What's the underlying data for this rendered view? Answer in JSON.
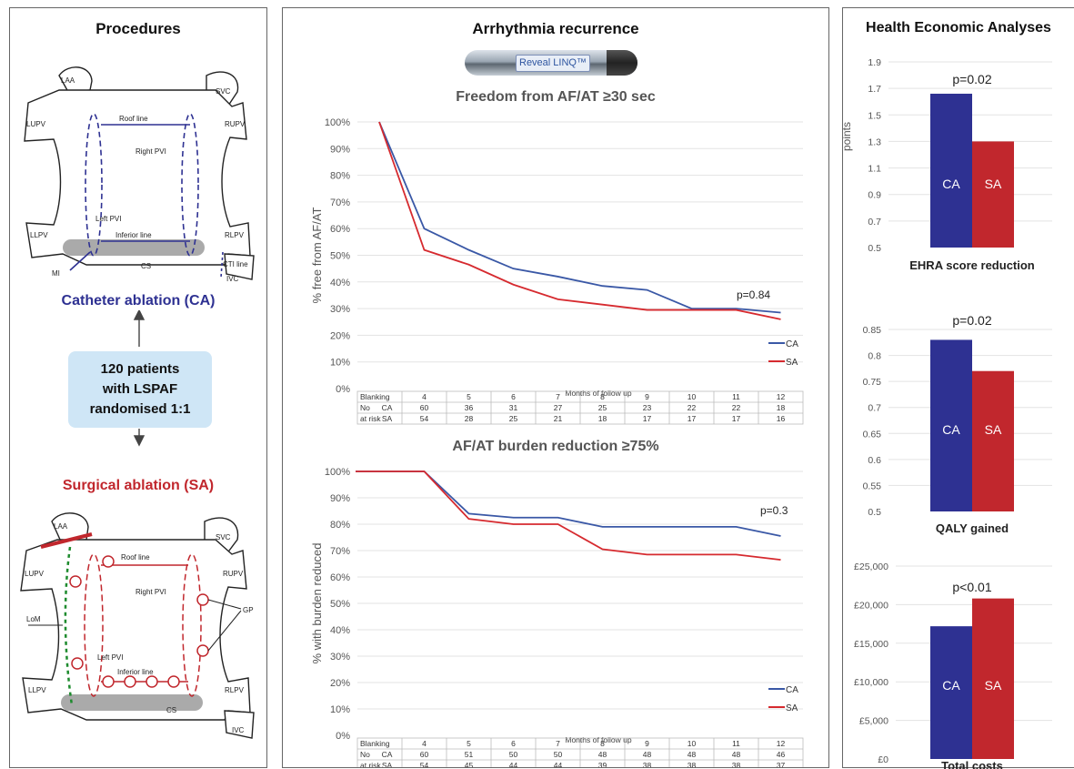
{
  "left_panel": {
    "title": "Procedures",
    "ca_caption": "Catheter ablation (CA)",
    "sa_caption": "Surgical ablation (SA)",
    "randomisation": [
      "120 patients",
      "with LSPAF",
      "randomised 1:1"
    ],
    "ca_diagram_labels": {
      "laa": "LAA",
      "svc": "SVC",
      "lupv": "LUPV",
      "rupv": "RUPV",
      "roof": "Roof line",
      "right_pvi": "Right PVI",
      "left_pvi": "Left PVI",
      "inferior": "Inferior line",
      "llpv": "LLPV",
      "rlpv": "RLPV",
      "mi": "MI",
      "cs": "CS",
      "cti": "CTI line",
      "ivc": "IVC"
    },
    "sa_diagram_labels": {
      "laa": "LAA",
      "svc": "SVC",
      "lupv": "LUPV",
      "rupv": "RUPV",
      "roof": "Roof line",
      "right_pvi": "Right PVI",
      "left_pvi": "Left PVI",
      "inferior": "Inferior line",
      "llpv": "LLPV",
      "rlpv": "RLPV",
      "lom": "LoM",
      "gp": "GP",
      "cs": "CS",
      "ivc": "IVC"
    }
  },
  "middle_panel": {
    "title": "Arrhythmia recurrence",
    "device_label": "Reveal LINQ™"
  },
  "right_panel": {
    "title": "Health Economic Analyses"
  },
  "colors": {
    "ca": "#2e3192",
    "sa": "#c1272d",
    "ca_line": "#3a58a6",
    "sa_line": "#d62a2f"
  },
  "chart_data": [
    {
      "type": "line",
      "title": "Freedom from AF/AT ≥30 sec",
      "ylabel": "% free from AF/AT",
      "xlabel": "Months of follow up",
      "ylim": [
        0,
        100
      ],
      "yticks": [
        "0%",
        "10%",
        "20%",
        "30%",
        "40%",
        "50%",
        "60%",
        "70%",
        "80%",
        "90%",
        "100%"
      ],
      "x": [
        "Blanking",
        "4",
        "5",
        "6",
        "7",
        "8",
        "9",
        "10",
        "11",
        "12"
      ],
      "series": [
        {
          "name": "CA",
          "values": [
            100,
            60,
            52,
            45,
            42,
            38.5,
            37,
            30,
            30,
            28.5
          ]
        },
        {
          "name": "SA",
          "values": [
            100,
            52,
            46.5,
            39,
            33.5,
            31.5,
            29.5,
            29.5,
            29.5,
            26
          ]
        }
      ],
      "annotation": "p=0.84",
      "risk_table": {
        "row_header": [
          "No",
          "at risk"
        ],
        "CA": [
          "60",
          "36",
          "31",
          "27",
          "25",
          "23",
          "22",
          "22",
          "18"
        ],
        "SA": [
          "54",
          "28",
          "25",
          "21",
          "18",
          "17",
          "17",
          "17",
          "16"
        ]
      },
      "legend": "bottom-right"
    },
    {
      "type": "line",
      "title": "AF/AT burden reduction ≥75%",
      "ylabel": "% with burden reduced",
      "xlabel": "Months of follow up",
      "ylim": [
        0,
        100
      ],
      "yticks": [
        "0%",
        "10%",
        "20%",
        "30%",
        "40%",
        "50%",
        "60%",
        "70%",
        "80%",
        "90%",
        "100%"
      ],
      "x": [
        "Blanking",
        "4",
        "5",
        "6",
        "7",
        "8",
        "9",
        "10",
        "11",
        "12"
      ],
      "series": [
        {
          "name": "CA",
          "values": [
            100,
            100,
            84,
            82.5,
            82.5,
            79,
            79,
            79,
            79,
            75.5
          ]
        },
        {
          "name": "SA",
          "values": [
            100,
            100,
            82,
            80,
            80,
            70.5,
            68.5,
            68.5,
            68.5,
            66.5
          ]
        }
      ],
      "annotation": "p=0.3",
      "risk_table": {
        "row_header": [
          "No",
          "at risk"
        ],
        "CA": [
          "60",
          "51",
          "50",
          "50",
          "48",
          "48",
          "48",
          "48",
          "46"
        ],
        "SA": [
          "54",
          "45",
          "44",
          "44",
          "39",
          "38",
          "38",
          "38",
          "37"
        ]
      },
      "legend": "bottom-right"
    },
    {
      "type": "bar",
      "xlabel": "EHRA score reduction",
      "ylabel": "points",
      "ylim": [
        0.5,
        1.9
      ],
      "yticks": [
        "0.5",
        "0.7",
        "0.9",
        "1.1",
        "1.3",
        "1.5",
        "1.7",
        "1.9"
      ],
      "categories": [
        "CA",
        "SA"
      ],
      "values": [
        1.66,
        1.3
      ],
      "annotation": "p=0.02"
    },
    {
      "type": "bar",
      "xlabel": "QALY gained",
      "ylim": [
        0.5,
        0.85
      ],
      "yticks": [
        "0.5",
        "0.55",
        "0.6",
        "0.65",
        "0.7",
        "0.75",
        "0.8",
        "0.85"
      ],
      "categories": [
        "CA",
        "SA"
      ],
      "values": [
        0.83,
        0.77
      ],
      "annotation": "p=0.02"
    },
    {
      "type": "bar",
      "xlabel": "Total costs",
      "ylim": [
        0,
        25000
      ],
      "yticks": [
        "£0",
        "£5,000",
        "£10,000",
        "£15,000",
        "£20,000",
        "£25,000"
      ],
      "categories": [
        "CA",
        "SA"
      ],
      "values": [
        17200,
        20800
      ],
      "annotation": "p<0.01"
    }
  ]
}
